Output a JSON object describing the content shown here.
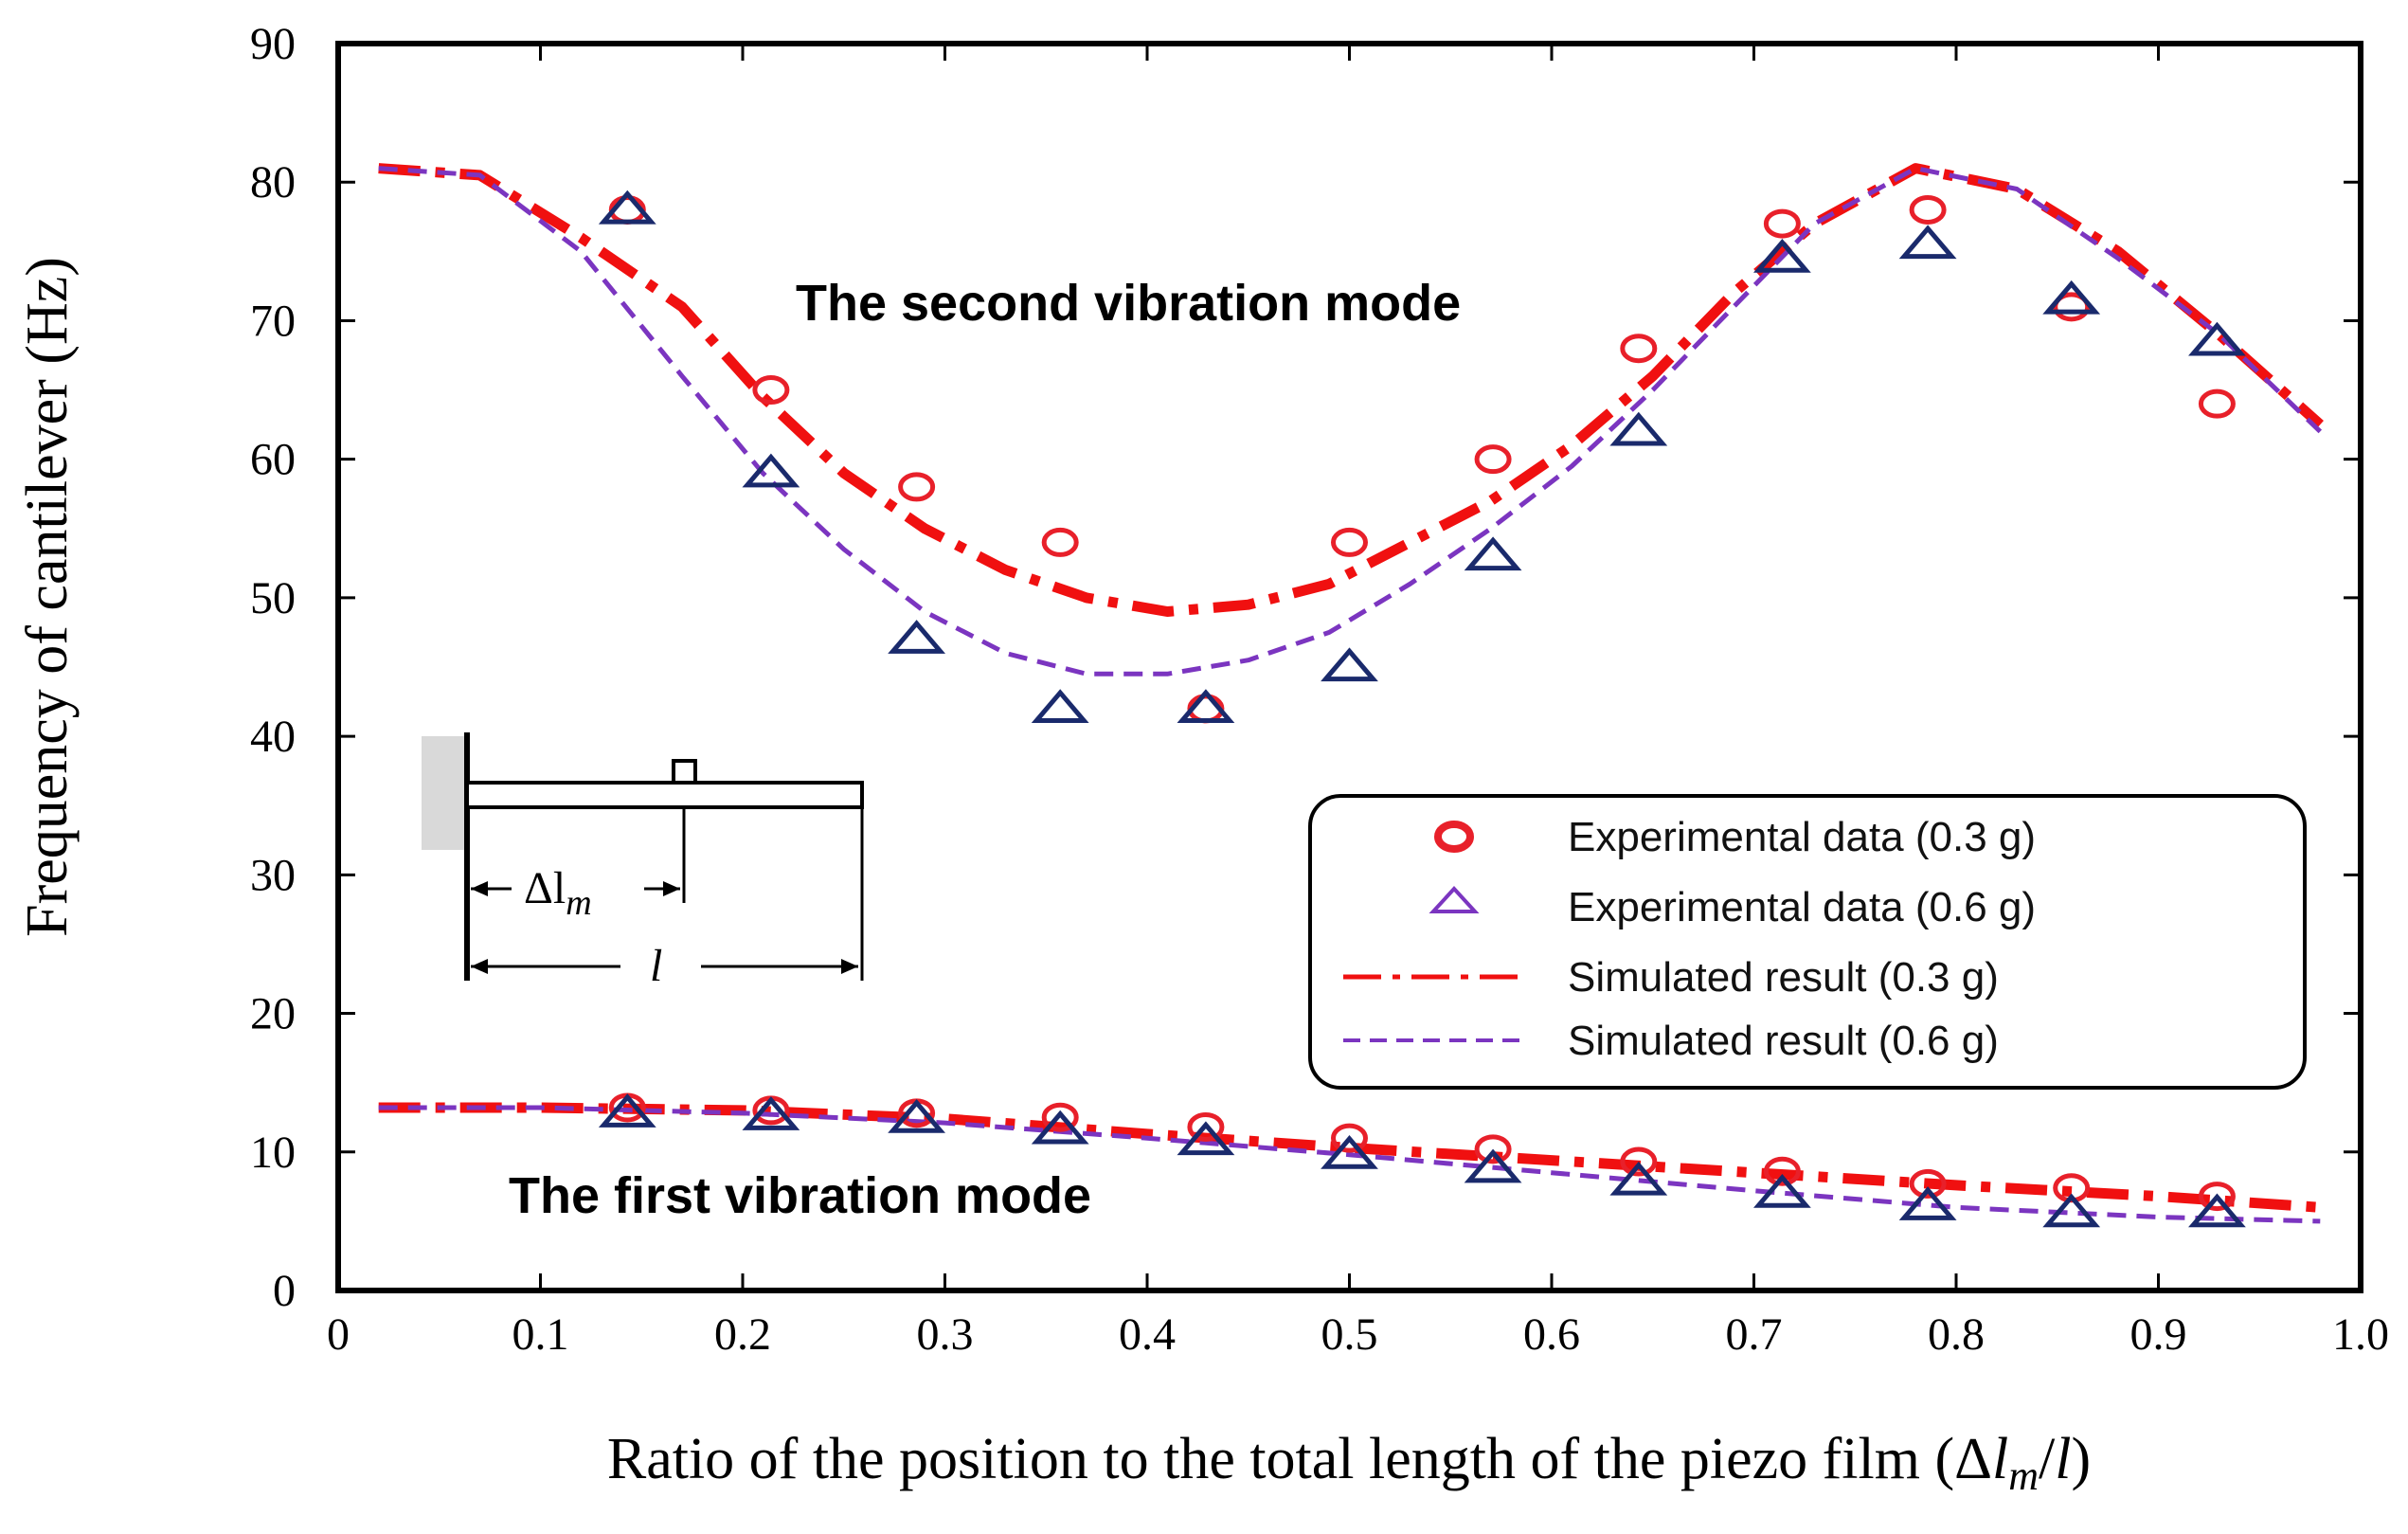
{
  "chart_data": {
    "type": "line",
    "title": "",
    "xlabel": "Ratio of the position to the total length of the piezo film (Δl_m/l)",
    "ylabel": "Frequency of cantilever (Hz)",
    "xlim": [
      0,
      1.0
    ],
    "ylim": [
      0,
      90
    ],
    "x_ticks": [
      "0",
      "0.1",
      "0.2",
      "0.3",
      "0.4",
      "0.5",
      "0.6",
      "0.7",
      "0.8",
      "0.9",
      "1.0"
    ],
    "y_ticks": [
      "0",
      "10",
      "20",
      "30",
      "40",
      "50",
      "60",
      "70",
      "80",
      "90"
    ],
    "grid": false,
    "legend_position": "center-right",
    "annotations": {
      "second_mode": "The second vibration mode",
      "first_mode": "The first vibration mode"
    },
    "inset": {
      "delta_label": "Δl",
      "delta_sub": "m",
      "length_label": "l"
    },
    "colors": {
      "exp_03": "#e8202a",
      "exp_06": "#1a2a6c",
      "sim_03": "#f01010",
      "sim_06": "#7b35c0"
    },
    "legend": [
      {
        "label": "Experimental data (0.3 g)",
        "marker": "circle"
      },
      {
        "label": "Experimental data (0.6 g)",
        "marker": "triangle"
      },
      {
        "label": "Simulated result (0.3 g)",
        "marker": "dashdot"
      },
      {
        "label": "Simulated result (0.6 g)",
        "marker": "dashed"
      }
    ],
    "series": [
      {
        "name": "Experimental data (0.3 g)",
        "kind": "scatter",
        "marker": "circle",
        "x": [
          0.143,
          0.214,
          0.286,
          0.357,
          0.429,
          0.5,
          0.571,
          0.643,
          0.714,
          0.786,
          0.857,
          0.929,
          0.143,
          0.214,
          0.286,
          0.357,
          0.429,
          0.5,
          0.571,
          0.643,
          0.714,
          0.786,
          0.857,
          0.929
        ],
        "y": [
          78,
          65,
          58,
          54,
          42,
          54,
          60,
          68,
          77,
          78,
          71,
          64,
          13.2,
          13,
          12.8,
          12.5,
          11.8,
          11,
          10.2,
          9.3,
          8.6,
          7.7,
          7.4,
          6.8
        ]
      },
      {
        "name": "Experimental data (0.6 g)",
        "kind": "scatter",
        "marker": "triangle",
        "x": [
          0.143,
          0.214,
          0.286,
          0.357,
          0.429,
          0.5,
          0.571,
          0.643,
          0.714,
          0.786,
          0.857,
          0.929,
          0.143,
          0.214,
          0.286,
          0.357,
          0.429,
          0.5,
          0.571,
          0.643,
          0.714,
          0.786,
          0.857,
          0.929
        ],
        "y": [
          78,
          59,
          47,
          42,
          42,
          45,
          53,
          62,
          74.5,
          75.5,
          71.5,
          68.5,
          12.8,
          12.6,
          12.4,
          11.6,
          10.8,
          9.8,
          8.8,
          7.9,
          7,
          6.1,
          5.6,
          5.6
        ]
      },
      {
        "name": "Simulated result (0.3 g)",
        "kind": "line",
        "style": "dashdot",
        "x": [
          0.02,
          0.07,
          0.12,
          0.17,
          0.21,
          0.25,
          0.29,
          0.33,
          0.37,
          0.41,
          0.45,
          0.49,
          0.53,
          0.57,
          0.61,
          0.65,
          0.69,
          0.73,
          0.78,
          0.83,
          0.88,
          0.93,
          0.98,
          0.02,
          0.1,
          0.2,
          0.3,
          0.4,
          0.5,
          0.6,
          0.7,
          0.8,
          0.9,
          0.98
        ],
        "y": [
          81,
          80.5,
          76,
          71,
          64.5,
          59,
          55,
          52,
          50,
          49,
          49.5,
          51,
          54,
          57,
          61,
          66,
          72,
          77,
          81,
          79.5,
          75,
          69,
          62.5,
          13.2,
          13.2,
          13,
          12.4,
          11.3,
          10.3,
          9.4,
          8.5,
          7.6,
          6.8,
          6
        ]
      },
      {
        "name": "Simulated result (0.6 g)",
        "kind": "line",
        "style": "dashed",
        "x": [
          0.02,
          0.07,
          0.12,
          0.17,
          0.21,
          0.25,
          0.29,
          0.33,
          0.37,
          0.41,
          0.45,
          0.49,
          0.53,
          0.57,
          0.61,
          0.65,
          0.69,
          0.73,
          0.78,
          0.83,
          0.88,
          0.93,
          0.98,
          0.02,
          0.1,
          0.2,
          0.3,
          0.4,
          0.5,
          0.6,
          0.7,
          0.8,
          0.9,
          0.98
        ],
        "y": [
          81,
          80.5,
          75,
          66,
          59,
          53.5,
          49,
          46,
          44.5,
          44.5,
          45.5,
          47.5,
          51,
          55,
          59.5,
          65,
          71,
          77,
          81,
          79.5,
          74.5,
          69,
          62,
          13.2,
          13.2,
          12.8,
          12.1,
          11,
          9.8,
          8.5,
          7.2,
          6,
          5.3,
          5
        ]
      }
    ]
  }
}
